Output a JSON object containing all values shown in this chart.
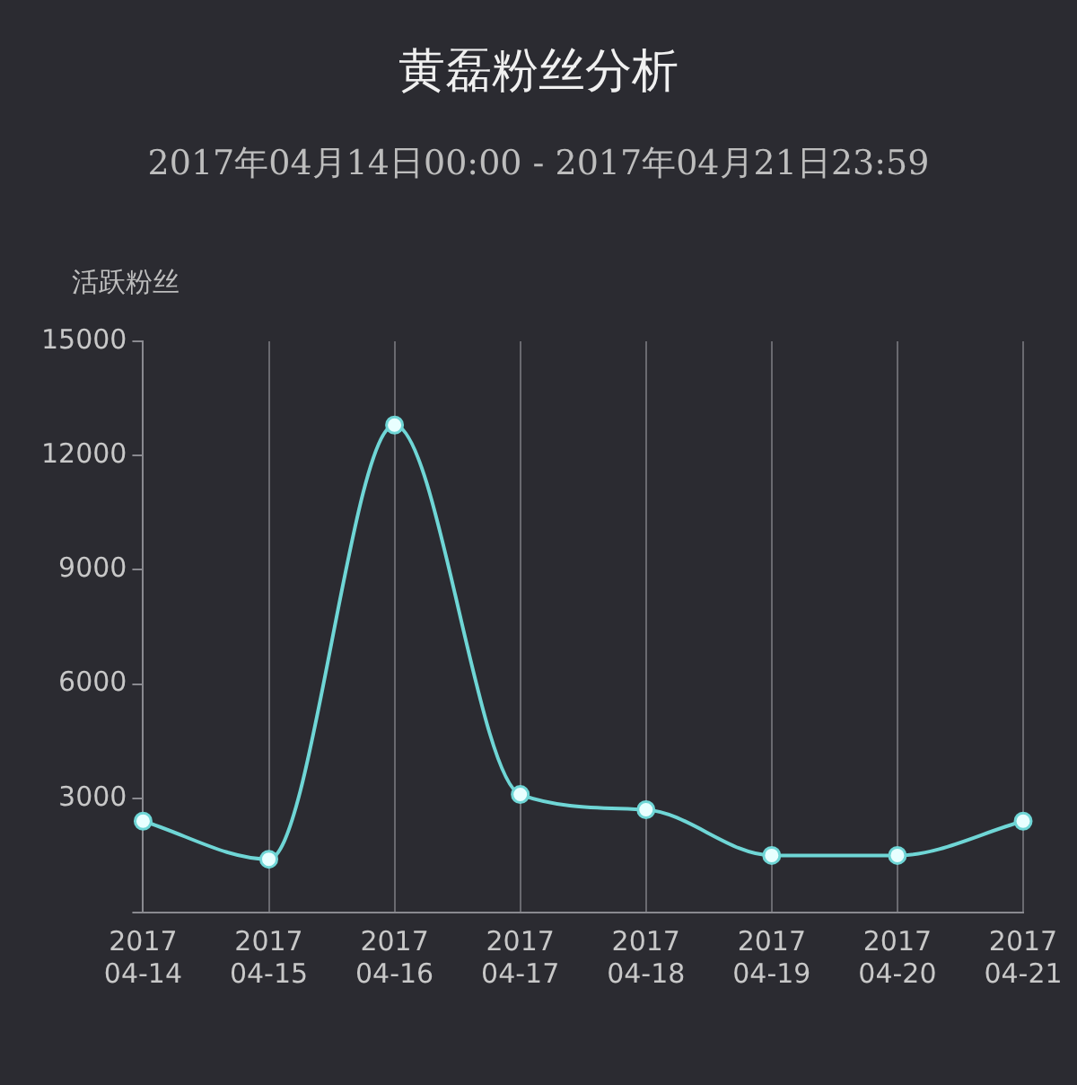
{
  "chart_data": {
    "type": "line",
    "title": "黄磊粉丝分析",
    "subtitle": "2017年04月14日00:00 - 2017年04月21日23:59",
    "ylabel": "活跃粉丝",
    "categories": [
      "2017 04-14",
      "2017 04-15",
      "2017 04-16",
      "2017 04-17",
      "2017 04-18",
      "2017 04-19",
      "2017 04-20",
      "2017 04-21"
    ],
    "series": [
      {
        "color": "#6fd6d6",
        "values": [
          2400,
          1400,
          12800,
          3100,
          2700,
          1500,
          1500,
          2400
        ]
      }
    ],
    "ylim": [
      0,
      15000
    ],
    "yticks": [
      {
        "value": 0,
        "label": null
      },
      3000,
      6000,
      9000,
      12000,
      15000
    ],
    "grid": "x",
    "legend": false,
    "marker": "circle",
    "line_style": "solid"
  }
}
